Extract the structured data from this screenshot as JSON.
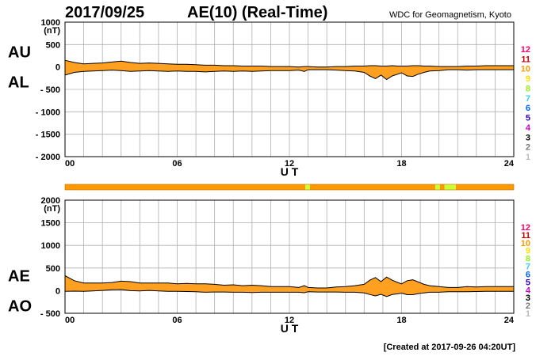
{
  "header": {
    "date": "2017/09/25",
    "title": "AE(10) (Real-Time)",
    "source": "WDC for Geomagnetism, Kyoto"
  },
  "footer": {
    "created": "[Created at 2017-09-26 04:20UT]"
  },
  "colors": {
    "fill": "#ffa020",
    "line": "#000000",
    "grid": "#b0b0b0",
    "station_bar": "#ff9900",
    "station_bar_alt": "#ccff33"
  },
  "station_legend": [
    {
      "label": "12",
      "color": "#ff0066"
    },
    {
      "label": "11",
      "color": "#cc0000"
    },
    {
      "label": "10",
      "color": "#ff9900"
    },
    {
      "label": "9",
      "color": "#ffdd00"
    },
    {
      "label": "8",
      "color": "#99ee22"
    },
    {
      "label": "7",
      "color": "#33ccff"
    },
    {
      "label": "6",
      "color": "#0066ff"
    },
    {
      "label": "5",
      "color": "#3300cc"
    },
    {
      "label": "4",
      "color": "#cc00cc"
    },
    {
      "label": "3",
      "color": "#000000"
    },
    {
      "label": "2",
      "color": "#777777"
    },
    {
      "label": "1",
      "color": "#bbbbbb"
    }
  ],
  "station_bar": {
    "segments": [
      {
        "from": 0,
        "to": 12.85,
        "stations": 10
      },
      {
        "from": 12.85,
        "to": 13.1,
        "stations": 8
      },
      {
        "from": 13.1,
        "to": 19.8,
        "stations": 10
      },
      {
        "from": 19.8,
        "to": 20.05,
        "stations": 9
      },
      {
        "from": 20.05,
        "to": 20.3,
        "stations": 10
      },
      {
        "from": 20.3,
        "to": 20.9,
        "stations": 9
      },
      {
        "from": 20.9,
        "to": 24,
        "stations": 10
      }
    ]
  },
  "chart_data": [
    {
      "type": "area",
      "name_upper": "AU",
      "name_lower": "AL",
      "unit": "(nT)",
      "xlabel": "U T",
      "xlim": [
        0,
        24
      ],
      "ylim": [
        -2000,
        1000
      ],
      "x_ticks": [
        "00",
        "06",
        "12",
        "18",
        "24"
      ],
      "y_ticks": [
        "1000",
        "500",
        "0",
        "- 500",
        "- 1000",
        "- 1500",
        "- 2000"
      ],
      "y_tick_values": [
        1000,
        500,
        0,
        -500,
        -1000,
        -1500,
        -2000
      ],
      "x": [
        0,
        0.5,
        1,
        1.5,
        2,
        2.5,
        3,
        3.5,
        4,
        4.5,
        5,
        5.5,
        6,
        6.5,
        7,
        7.5,
        8,
        8.5,
        9,
        9.5,
        10,
        10.5,
        11,
        11.5,
        12,
        12.5,
        12.8,
        13,
        13.5,
        14,
        14.5,
        15,
        15.5,
        16,
        16.3,
        16.6,
        16.9,
        17.2,
        17.5,
        17.8,
        18,
        18.3,
        18.6,
        18.9,
        19.2,
        19.5,
        20,
        20.5,
        21,
        21.5,
        22,
        22.5,
        23,
        23.5,
        24
      ],
      "series": [
        {
          "label": "AU",
          "values": [
            150,
            100,
            70,
            80,
            90,
            110,
            130,
            100,
            80,
            90,
            80,
            70,
            60,
            60,
            50,
            40,
            40,
            30,
            30,
            20,
            20,
            20,
            10,
            10,
            10,
            0,
            10,
            10,
            0,
            0,
            10,
            10,
            20,
            20,
            30,
            30,
            20,
            20,
            30,
            20,
            20,
            20,
            30,
            30,
            20,
            20,
            10,
            10,
            10,
            20,
            20,
            30,
            30,
            30,
            30
          ]
        },
        {
          "label": "AL",
          "values": [
            -180,
            -120,
            -100,
            -90,
            -80,
            -70,
            -80,
            -100,
            -90,
            -80,
            -90,
            -100,
            -90,
            -100,
            -100,
            -110,
            -100,
            -90,
            -100,
            -90,
            -100,
            -90,
            -80,
            -80,
            -80,
            -70,
            -100,
            -60,
            -60,
            -60,
            -70,
            -80,
            -90,
            -120,
            -200,
            -260,
            -180,
            -280,
            -200,
            -160,
            -130,
            -200,
            -210,
            -160,
            -120,
            -90,
            -80,
            -60,
            -60,
            -70,
            -60,
            -60,
            -60,
            -60,
            -60
          ]
        }
      ]
    },
    {
      "type": "area",
      "name_upper": "AE",
      "name_lower": "AO",
      "unit": "(nT)",
      "xlabel": "U T",
      "xlim": [
        0,
        24
      ],
      "ylim": [
        -500,
        2000
      ],
      "x_ticks": [
        "00",
        "06",
        "12",
        "18",
        "24"
      ],
      "y_ticks": [
        "2000",
        "1500",
        "1000",
        "500",
        "0",
        "- 500"
      ],
      "y_tick_values": [
        2000,
        1500,
        1000,
        500,
        0,
        -500
      ],
      "x": [
        0,
        0.5,
        1,
        1.5,
        2,
        2.5,
        3,
        3.5,
        4,
        4.5,
        5,
        5.5,
        6,
        6.5,
        7,
        7.5,
        8,
        8.5,
        9,
        9.5,
        10,
        10.5,
        11,
        11.5,
        12,
        12.5,
        12.8,
        13,
        13.5,
        14,
        14.5,
        15,
        15.5,
        16,
        16.3,
        16.6,
        16.9,
        17.2,
        17.5,
        17.8,
        18,
        18.3,
        18.6,
        18.9,
        19.2,
        19.5,
        20,
        20.5,
        21,
        21.5,
        22,
        22.5,
        23,
        23.5,
        24
      ],
      "series": [
        {
          "label": "AE",
          "values": [
            330,
            220,
            170,
            170,
            170,
            180,
            210,
            200,
            170,
            170,
            170,
            170,
            150,
            160,
            150,
            150,
            140,
            120,
            130,
            110,
            120,
            110,
            90,
            90,
            90,
            70,
            110,
            70,
            60,
            60,
            80,
            90,
            110,
            140,
            230,
            290,
            200,
            300,
            230,
            180,
            150,
            220,
            240,
            190,
            140,
            110,
            90,
            70,
            70,
            90,
            80,
            90,
            90,
            90,
            90
          ]
        },
        {
          "label": "AO",
          "values": [
            -15,
            -10,
            -15,
            -5,
            5,
            20,
            25,
            0,
            -5,
            5,
            -5,
            -15,
            -15,
            -20,
            -25,
            -35,
            -30,
            -30,
            -35,
            -35,
            -40,
            -35,
            -35,
            -35,
            -35,
            -35,
            -45,
            -25,
            -30,
            -30,
            -30,
            -35,
            -35,
            -50,
            -85,
            -115,
            -80,
            -130,
            -85,
            -70,
            -55,
            -90,
            -90,
            -65,
            -50,
            -35,
            -35,
            -25,
            -25,
            -25,
            -20,
            -15,
            -15,
            -15,
            -15
          ]
        }
      ]
    }
  ]
}
